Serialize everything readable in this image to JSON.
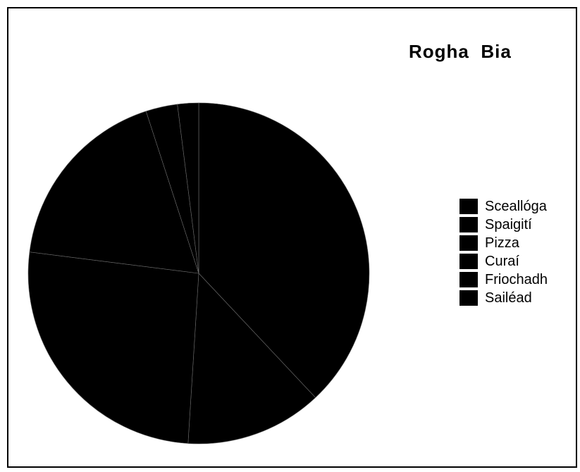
{
  "chart_data": {
    "type": "pie",
    "title": "Rogha  Bia",
    "categories": [
      "Sceallóga",
      "Spaigití",
      "Pizza",
      "Curaí",
      "Friochadh",
      "Sailéad"
    ],
    "values": [
      38,
      13,
      26,
      18,
      3,
      2
    ],
    "units": "",
    "legend_position": "right",
    "colors": {
      "slice_fill": "#000000",
      "slice_border": "#6e6e6e",
      "background": "#ffffff",
      "text": "#000000"
    }
  }
}
